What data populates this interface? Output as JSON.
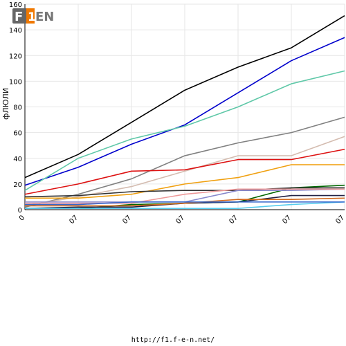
{
  "logo": {
    "text": "F1EN"
  },
  "footer": {
    "url": "http://f1.f-e-n.net/"
  },
  "chart_data": {
    "type": "line",
    "title": "",
    "ylabel": "фЛЮЛИ",
    "xlabel": "",
    "ylim": [
      0,
      160
    ],
    "yticks": [
      0,
      20,
      40,
      60,
      80,
      100,
      120,
      140,
      160
    ],
    "x_tick_labels": [
      "0",
      "07",
      "07",
      "07",
      "07",
      "07",
      "07"
    ],
    "x": [
      0,
      1,
      2,
      3,
      4,
      5,
      6
    ],
    "grid": true,
    "series": [
      {
        "color": "#000000",
        "values": [
          25,
          43,
          68,
          93,
          111,
          126,
          151
        ]
      },
      {
        "color": "#0000cc",
        "values": [
          19,
          33,
          51,
          66,
          91,
          116,
          134
        ]
      },
      {
        "color": "#5fc8a8",
        "values": [
          15,
          40,
          55,
          65,
          80,
          98,
          108
        ]
      },
      {
        "color": "#808080",
        "values": [
          2,
          12,
          24,
          42,
          52,
          60,
          72
        ]
      },
      {
        "color": "#d4bcb0",
        "values": [
          3,
          10,
          18,
          30,
          42,
          42,
          57
        ]
      },
      {
        "color": "#dd1111",
        "values": [
          12,
          20,
          30,
          31,
          39,
          39,
          47
        ]
      },
      {
        "color": "#f0a010",
        "values": [
          9,
          9,
          12,
          20,
          25,
          35,
          35
        ]
      },
      {
        "color": "#006600",
        "values": [
          1,
          1,
          4,
          5,
          6,
          17,
          19
        ]
      },
      {
        "color": "#333333",
        "values": [
          10,
          11,
          14,
          15,
          15,
          17,
          17
        ]
      },
      {
        "color": "#8888cc",
        "values": [
          6,
          6,
          6,
          6,
          15,
          15,
          16
        ]
      },
      {
        "color": "#ee9999",
        "values": [
          5,
          5,
          5,
          12,
          16,
          16,
          16
        ]
      },
      {
        "color": "#222244",
        "values": [
          1,
          2,
          2,
          5,
          6,
          11,
          11
        ]
      },
      {
        "color": "#d2691e",
        "values": [
          3,
          3,
          3,
          5,
          8,
          8,
          9
        ]
      },
      {
        "color": "#55ccee",
        "values": [
          1,
          1,
          1,
          1,
          1,
          4,
          6
        ]
      },
      {
        "color": "#3366cc",
        "values": [
          4,
          4,
          6,
          6,
          6,
          6,
          6
        ]
      }
    ]
  }
}
